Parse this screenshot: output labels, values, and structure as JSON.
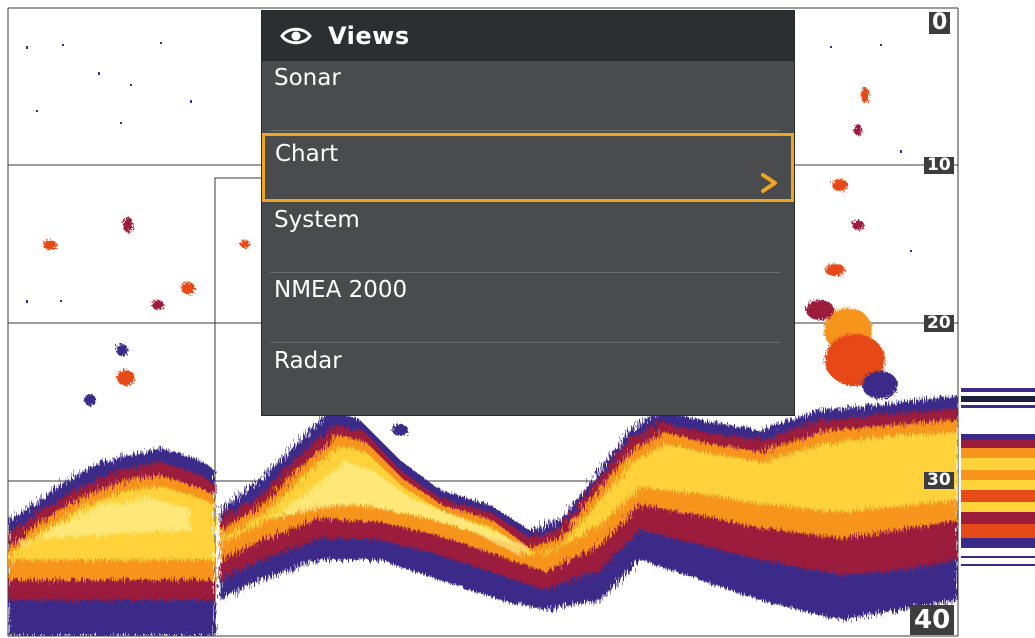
{
  "depth_scale": {
    "labels": [
      "0",
      "10",
      "20",
      "30",
      "40"
    ]
  },
  "views_menu": {
    "title": "Views",
    "header_icon": "eye-icon",
    "items": [
      {
        "label": "Sonar",
        "selected": false
      },
      {
        "label": "Chart",
        "selected": true,
        "submenu_icon": "chevron-right-icon"
      },
      {
        "label": "System",
        "selected": false
      },
      {
        "label": "NMEA 2000",
        "selected": false
      },
      {
        "label": "Radar",
        "selected": false
      }
    ],
    "highlight_color": "#f0a423"
  },
  "colors": {
    "background": "#ffffff",
    "menu_bg": "#4a4b4c",
    "menu_header_bg": "#2c2f31",
    "sonar_palette": [
      "#fff6a0",
      "#ffd23a",
      "#f7941d",
      "#e64a19",
      "#9c1c3c",
      "#3b2a88"
    ]
  }
}
